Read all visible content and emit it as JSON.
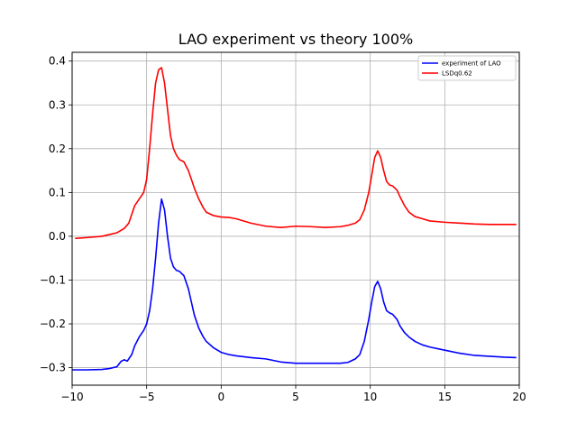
{
  "chart_data": {
    "type": "line",
    "title": "LAO  experiment vs theory 100%",
    "xlabel": "",
    "ylabel": "",
    "xlim": [
      -10,
      20
    ],
    "ylim": [
      -0.34,
      0.42
    ],
    "xticks": [
      -10,
      -5,
      0,
      5,
      10,
      15,
      20
    ],
    "yticks": [
      -0.3,
      -0.2,
      -0.1,
      0.0,
      0.1,
      0.2,
      0.3,
      0.4
    ],
    "xtick_labels": [
      "−10",
      "−5",
      "0",
      "5",
      "10",
      "15",
      "20"
    ],
    "ytick_labels": [
      "−0.3",
      "−0.2",
      "−0.1",
      "0.0",
      "0.1",
      "0.2",
      "0.3",
      "0.4"
    ],
    "grid": true,
    "legend_position": "top-right",
    "series": [
      {
        "name": "experiment of LAO",
        "color": "#0000ff",
        "x": [
          -10,
          -9,
          -8,
          -7.5,
          -7.0,
          -6.7,
          -6.5,
          -6.3,
          -6.0,
          -5.8,
          -5.5,
          -5.2,
          -5.0,
          -4.8,
          -4.6,
          -4.4,
          -4.2,
          -4.0,
          -3.8,
          -3.6,
          -3.4,
          -3.2,
          -3.0,
          -2.8,
          -2.5,
          -2.2,
          -2.0,
          -1.8,
          -1.5,
          -1.2,
          -1.0,
          -0.5,
          0,
          0.5,
          1,
          1.5,
          2,
          3,
          4,
          5,
          6,
          7,
          8,
          8.5,
          9,
          9.3,
          9.6,
          9.9,
          10.1,
          10.3,
          10.5,
          10.7,
          10.9,
          11.1,
          11.3,
          11.5,
          11.8,
          12.0,
          12.3,
          12.6,
          13,
          13.5,
          14,
          15,
          16,
          17,
          18,
          19,
          19.8
        ],
        "y": [
          -0.305,
          -0.305,
          -0.304,
          -0.302,
          -0.298,
          -0.285,
          -0.282,
          -0.285,
          -0.27,
          -0.25,
          -0.23,
          -0.215,
          -0.2,
          -0.17,
          -0.12,
          -0.05,
          0.03,
          0.085,
          0.06,
          0.0,
          -0.05,
          -0.07,
          -0.078,
          -0.08,
          -0.09,
          -0.12,
          -0.15,
          -0.18,
          -0.21,
          -0.23,
          -0.24,
          -0.255,
          -0.265,
          -0.27,
          -0.273,
          -0.275,
          -0.277,
          -0.28,
          -0.287,
          -0.29,
          -0.29,
          -0.29,
          -0.29,
          -0.288,
          -0.28,
          -0.27,
          -0.24,
          -0.19,
          -0.15,
          -0.115,
          -0.103,
          -0.12,
          -0.15,
          -0.17,
          -0.175,
          -0.178,
          -0.19,
          -0.205,
          -0.22,
          -0.23,
          -0.24,
          -0.248,
          -0.253,
          -0.26,
          -0.267,
          -0.272,
          -0.274,
          -0.276,
          -0.277
        ]
      },
      {
        "name": "LSDq0.62",
        "color": "#ff0000",
        "x": [
          -9.8,
          -9,
          -8,
          -7,
          -6.5,
          -6.2,
          -6.0,
          -5.8,
          -5.5,
          -5.2,
          -5.0,
          -4.8,
          -4.6,
          -4.4,
          -4.2,
          -4.0,
          -3.8,
          -3.6,
          -3.4,
          -3.2,
          -3.0,
          -2.8,
          -2.5,
          -2.2,
          -2.0,
          -1.8,
          -1.5,
          -1.2,
          -1.0,
          -0.5,
          0,
          0.5,
          1,
          2,
          3,
          4,
          5,
          6,
          7,
          8,
          8.5,
          9,
          9.3,
          9.6,
          9.9,
          10.1,
          10.3,
          10.5,
          10.7,
          10.9,
          11.1,
          11.3,
          11.5,
          11.8,
          12.0,
          12.3,
          12.6,
          13,
          13.5,
          14,
          15,
          16,
          17,
          18,
          19,
          19.8
        ],
        "y": [
          -0.005,
          -0.003,
          0.0,
          0.008,
          0.018,
          0.03,
          0.05,
          0.07,
          0.085,
          0.1,
          0.13,
          0.2,
          0.28,
          0.35,
          0.38,
          0.385,
          0.35,
          0.29,
          0.23,
          0.2,
          0.185,
          0.175,
          0.17,
          0.15,
          0.13,
          0.11,
          0.085,
          0.065,
          0.055,
          0.047,
          0.044,
          0.043,
          0.04,
          0.03,
          0.023,
          0.02,
          0.023,
          0.022,
          0.02,
          0.022,
          0.025,
          0.03,
          0.038,
          0.06,
          0.1,
          0.14,
          0.18,
          0.195,
          0.18,
          0.15,
          0.125,
          0.117,
          0.115,
          0.105,
          0.09,
          0.07,
          0.055,
          0.045,
          0.04,
          0.035,
          0.032,
          0.03,
          0.028,
          0.027,
          0.027,
          0.027
        ]
      }
    ]
  }
}
